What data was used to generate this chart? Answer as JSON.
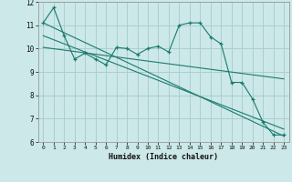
{
  "xlabel": "Humidex (Indice chaleur)",
  "bg_color": "#cce8e8",
  "grid_color": "#aacfcf",
  "line_color": "#1a7a6e",
  "xlim": [
    -0.5,
    23.5
  ],
  "ylim": [
    6,
    12
  ],
  "xtick_labels": [
    "0",
    "1",
    "2",
    "3",
    "4",
    "5",
    "6",
    "7",
    "8",
    "9",
    "10",
    "11",
    "12",
    "13",
    "14",
    "15",
    "16",
    "17",
    "18",
    "19",
    "20",
    "21",
    "22",
    "23"
  ],
  "yticks": [
    6,
    7,
    8,
    9,
    10,
    11,
    12
  ],
  "series1_x": [
    0,
    1,
    2,
    3,
    4,
    5,
    6,
    7,
    8,
    9,
    10,
    11,
    12,
    13,
    14,
    15,
    16,
    17,
    18,
    19,
    20,
    21,
    22,
    23
  ],
  "series1_y": [
    11.1,
    11.75,
    10.55,
    9.55,
    9.8,
    9.55,
    9.3,
    10.05,
    10.0,
    9.75,
    10.0,
    10.1,
    9.85,
    11.0,
    11.1,
    11.1,
    10.5,
    10.2,
    8.55,
    8.55,
    7.85,
    6.85,
    6.3,
    6.3
  ],
  "series2_x": [
    0,
    23
  ],
  "series2_y": [
    11.1,
    6.25
  ],
  "series3_x": [
    0,
    23
  ],
  "series3_y": [
    10.55,
    6.55
  ],
  "series4_x": [
    0,
    23
  ],
  "series4_y": [
    10.05,
    8.7
  ]
}
